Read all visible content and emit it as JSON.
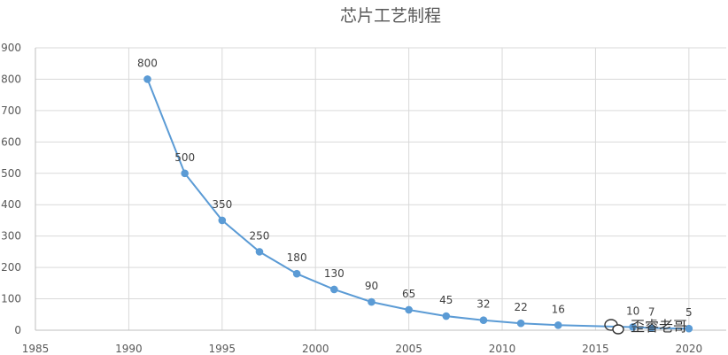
{
  "chart_data": {
    "type": "line",
    "title": "芯片工艺制程",
    "xlabel": "",
    "ylabel": "",
    "xlim": [
      1985,
      2022
    ],
    "ylim": [
      0,
      900
    ],
    "x_ticks": [
      1985,
      1990,
      1995,
      2000,
      2005,
      2010,
      2015,
      2020
    ],
    "y_ticks": [
      0,
      100,
      200,
      300,
      400,
      500,
      600,
      700,
      800,
      900
    ],
    "grid": true,
    "legend": "none",
    "series": [
      {
        "color": "#5b9bd5",
        "x": [
          1991,
          1993,
          1995,
          1997,
          1999,
          2001,
          2003,
          2005,
          2007,
          2009,
          2011,
          2013,
          2017,
          2018,
          2020
        ],
        "values": [
          800,
          500,
          350,
          250,
          180,
          130,
          90,
          65,
          45,
          32,
          22,
          16,
          10,
          7,
          5
        ],
        "labels": [
          "800",
          "500",
          "350",
          "250",
          "180",
          "130",
          "90",
          "65",
          "45",
          "32",
          "22",
          "16",
          "10",
          "7",
          "5"
        ]
      }
    ]
  },
  "watermark": {
    "text": "歪睿老哥",
    "icon": "wechat-icon"
  }
}
